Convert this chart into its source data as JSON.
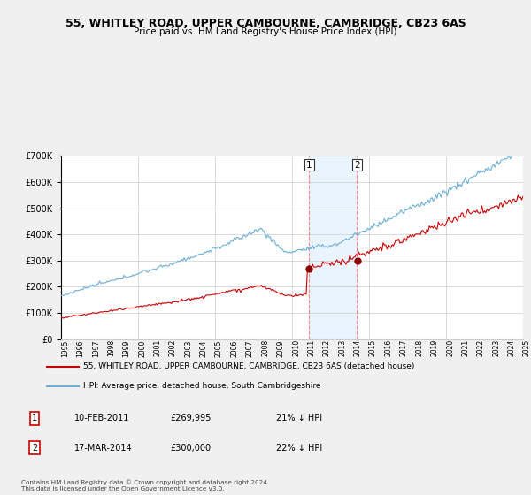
{
  "title_line1": "55, WHITLEY ROAD, UPPER CAMBOURNE, CAMBRIDGE, CB23 6AS",
  "title_line2": "Price paid vs. HM Land Registry's House Price Index (HPI)",
  "x_start_year": 1995,
  "x_end_year": 2025,
  "y_min": 0,
  "y_max": 700000,
  "y_ticks": [
    0,
    100000,
    200000,
    300000,
    400000,
    500000,
    600000,
    700000
  ],
  "y_tick_labels": [
    "£0",
    "£100K",
    "£200K",
    "£300K",
    "£400K",
    "£500K",
    "£600K",
    "£700K"
  ],
  "hpi_color": "#6baed6",
  "price_color": "#cc0000",
  "marker_color": "#8b0000",
  "vline_color": "#ff8888",
  "shade_color": "#ddeeff",
  "transaction1_date": 2011.12,
  "transaction1_price": 269995,
  "transaction2_date": 2014.22,
  "transaction2_price": 300000,
  "legend_line1": "55, WHITLEY ROAD, UPPER CAMBOURNE, CAMBRIDGE, CB23 6AS (detached house)",
  "legend_line2": "HPI: Average price, detached house, South Cambridgeshire",
  "transaction1_text1": "10-FEB-2011",
  "transaction1_text2": "£269,995",
  "transaction1_text3": "21% ↓ HPI",
  "transaction2_text1": "17-MAR-2014",
  "transaction2_text2": "£300,000",
  "transaction2_text3": "22% ↓ HPI",
  "footnote": "Contains HM Land Registry data © Crown copyright and database right 2024.\nThis data is licensed under the Open Government Licence v3.0.",
  "background_color": "#f0f0f0",
  "plot_bg_color": "#ffffff",
  "grid_color": "#cccccc"
}
